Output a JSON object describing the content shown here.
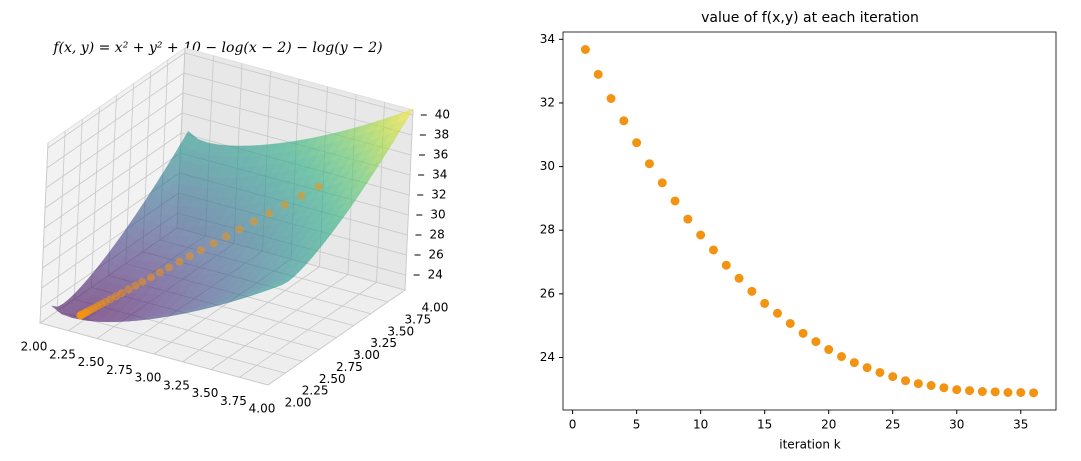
{
  "chart_data": [
    {
      "type": "surface3d",
      "title": "f(x, y) = x² + y² + 10 − log(x − 2) − log(y − 2)",
      "xlim": [
        2,
        4
      ],
      "ylim": [
        2,
        4
      ],
      "zlim": [
        22.5,
        40.5
      ],
      "xticks": [
        {
          "value": 2,
          "label": "2.00"
        },
        {
          "value": 2.25,
          "label": "2.25"
        },
        {
          "value": 2.5,
          "label": "2.50"
        },
        {
          "value": 2.75,
          "label": "2.75"
        },
        {
          "value": 3,
          "label": "3.00"
        },
        {
          "value": 3.25,
          "label": "3.25"
        },
        {
          "value": 3.5,
          "label": "3.50"
        },
        {
          "value": 3.75,
          "label": "3.75"
        },
        {
          "value": 4,
          "label": "4.00"
        }
      ],
      "yticks": [
        {
          "value": 2,
          "label": "2.00"
        },
        {
          "value": 2.25,
          "label": "2.25"
        },
        {
          "value": 2.5,
          "label": "2.50"
        },
        {
          "value": 2.75,
          "label": "2.75"
        },
        {
          "value": 3,
          "label": "3.00"
        },
        {
          "value": 3.25,
          "label": "3.25"
        },
        {
          "value": 3.5,
          "label": "3.50"
        },
        {
          "value": 3.75,
          "label": "3.75"
        },
        {
          "value": 4,
          "label": "4.00"
        }
      ],
      "zticks": [
        24,
        26,
        28,
        30,
        32,
        34,
        36,
        38,
        40
      ],
      "grid": true
    },
    {
      "type": "scatter",
      "title": "value of f(x,y) at each iteration",
      "xlabel": "iteration k",
      "x": [
        1,
        2,
        3,
        4,
        5,
        6,
        7,
        8,
        9,
        10,
        11,
        12,
        13,
        14,
        15,
        16,
        17,
        18,
        19,
        20,
        21,
        22,
        23,
        24,
        25,
        26,
        27,
        28,
        29,
        30,
        31,
        32,
        33,
        34,
        35,
        36
      ],
      "values": [
        33.68,
        32.9,
        32.14,
        31.44,
        30.75,
        30.09,
        29.49,
        28.92,
        28.35,
        27.85,
        27.38,
        26.9,
        26.49,
        26.08,
        25.7,
        25.39,
        25.07,
        24.76,
        24.5,
        24.25,
        24.03,
        23.84,
        23.68,
        23.53,
        23.4,
        23.27,
        23.18,
        23.12,
        23.05,
        22.99,
        22.96,
        22.93,
        22.92,
        22.9,
        22.9,
        22.89
      ],
      "color": "#f39312",
      "xlim": [
        -0.75,
        37.75
      ],
      "ylim": [
        22.35,
        34.23
      ],
      "xticks": [
        0,
        5,
        10,
        15,
        20,
        25,
        30,
        35
      ],
      "yticks": [
        24,
        26,
        28,
        30,
        32,
        34
      ]
    }
  ]
}
